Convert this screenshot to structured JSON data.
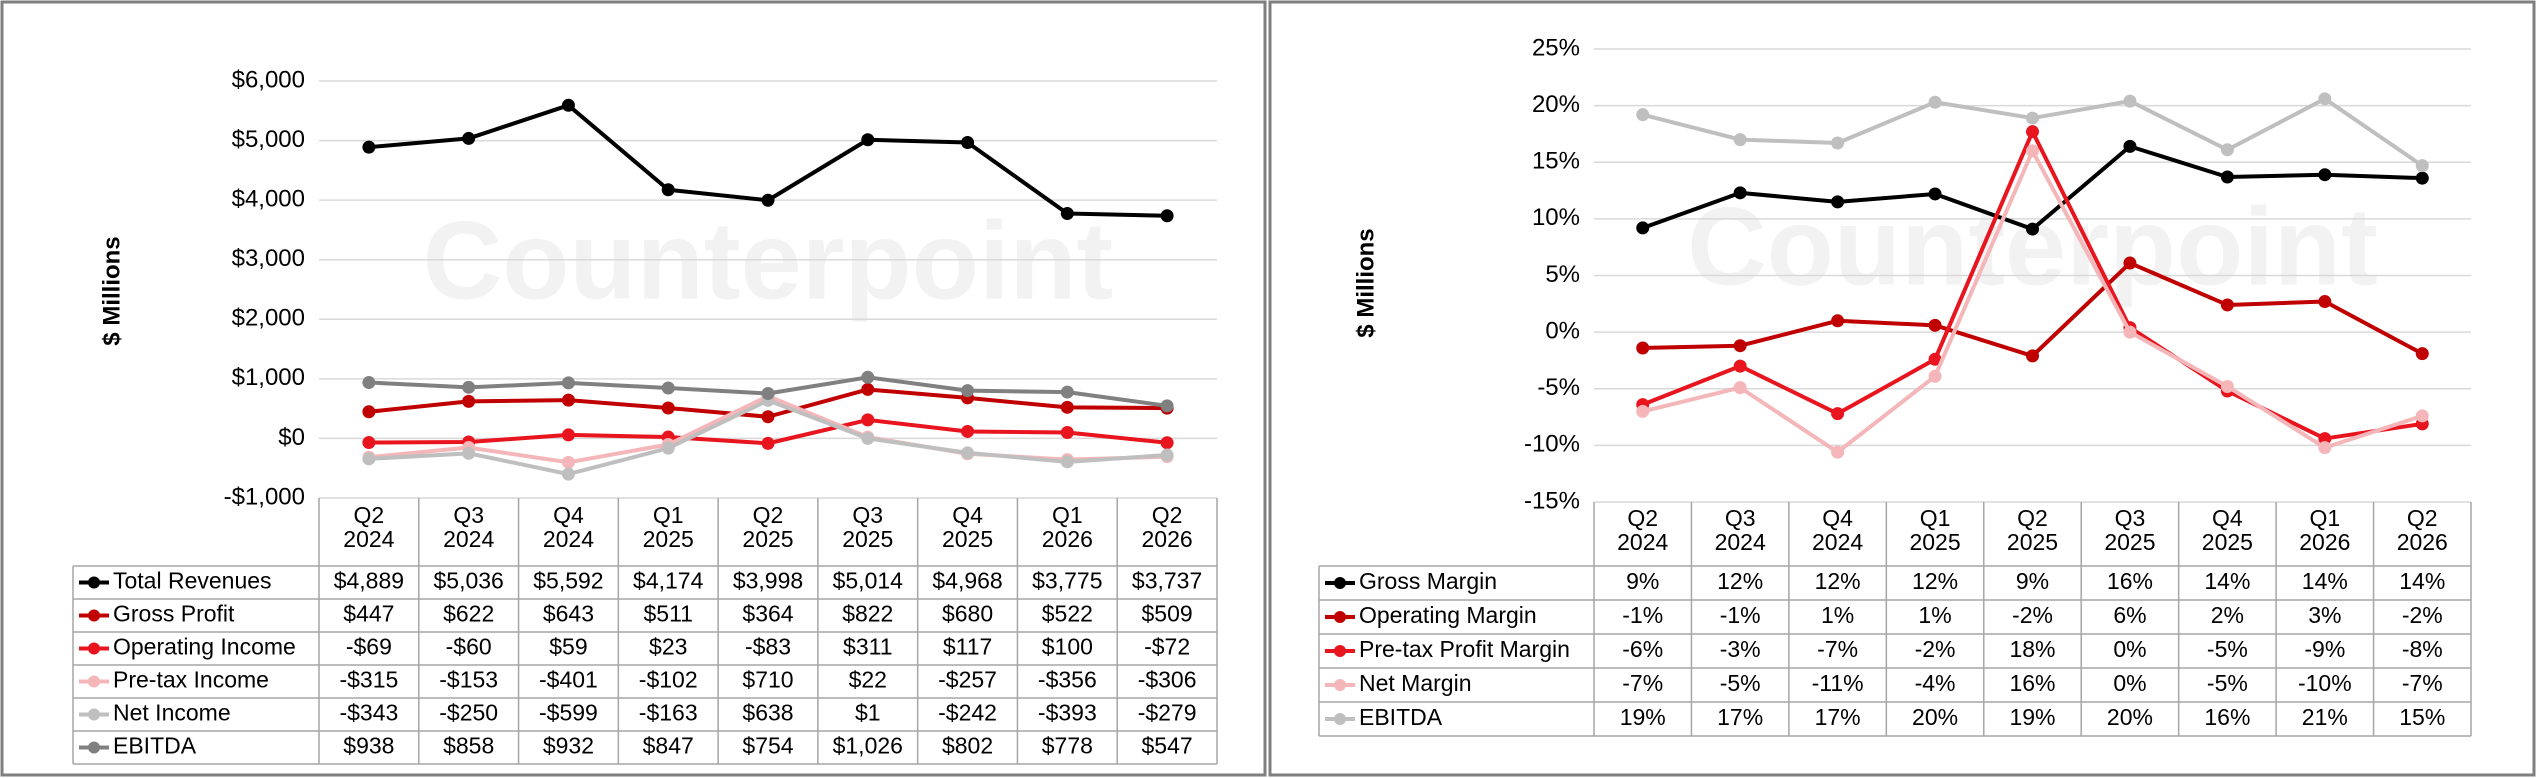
{
  "chart_data": [
    {
      "type": "line",
      "y_axis_label": "$ Millions",
      "watermark": "Counterpoint",
      "grid": true,
      "categories": [
        "Q2 2024",
        "Q3 2024",
        "Q4 2024",
        "Q1 2025",
        "Q2 2025",
        "Q3 2025",
        "Q4 2025",
        "Q1 2026",
        "Q2 2026"
      ],
      "ylim": [
        -1000,
        6000
      ],
      "yticks": [
        {
          "value": -1000,
          "label": "-$1,000"
        },
        {
          "value": 0,
          "label": "$0"
        },
        {
          "value": 1000,
          "label": "$1,000"
        },
        {
          "value": 2000,
          "label": "$2,000"
        },
        {
          "value": 3000,
          "label": "$3,000"
        },
        {
          "value": 4000,
          "label": "$4,000"
        },
        {
          "value": 5000,
          "label": "$5,000"
        },
        {
          "value": 6000,
          "label": "$6,000"
        }
      ],
      "series": [
        {
          "name": "Total Revenues",
          "color": "#000000",
          "values": [
            4889,
            5036,
            5592,
            4174,
            3998,
            5014,
            4968,
            3775,
            3737
          ],
          "value_labels": [
            "$4,889",
            "$5,036",
            "$5,592",
            "$4,174",
            "$3,998",
            "$5,014",
            "$4,968",
            "$3,775",
            "$3,737"
          ]
        },
        {
          "name": "Gross Profit",
          "color": "#c00000",
          "values": [
            447,
            622,
            643,
            511,
            364,
            822,
            680,
            522,
            509
          ],
          "value_labels": [
            "$447",
            "$622",
            "$643",
            "$511",
            "$364",
            "$822",
            "$680",
            "$522",
            "$509"
          ]
        },
        {
          "name": "Operating Income",
          "color": "#e8141e",
          "values": [
            -69,
            -60,
            59,
            23,
            -83,
            311,
            117,
            100,
            -72
          ],
          "value_labels": [
            "-$69",
            "-$60",
            "$59",
            "$23",
            "-$83",
            "$311",
            "$117",
            "$100",
            "-$72"
          ]
        },
        {
          "name": "Pre-tax Income",
          "color": "#f4b6b8",
          "values": [
            -315,
            -153,
            -401,
            -102,
            710,
            22,
            -257,
            -356,
            -306
          ],
          "value_labels": [
            "-$315",
            "-$153",
            "-$401",
            "-$102",
            "$710",
            "$22",
            "-$257",
            "-$356",
            "-$306"
          ]
        },
        {
          "name": "Net Income",
          "color": "#bfbfbf",
          "values": [
            -343,
            -250,
            -599,
            -163,
            638,
            1,
            -242,
            -393,
            -279
          ],
          "value_labels": [
            "-$343",
            "-$250",
            "-$599",
            "-$163",
            "$638",
            "$1",
            "-$242",
            "-$393",
            "-$279"
          ]
        },
        {
          "name": "EBITDA",
          "color": "#808080",
          "values": [
            938,
            858,
            932,
            847,
            754,
            1026,
            802,
            778,
            547
          ],
          "value_labels": [
            "$938",
            "$858",
            "$932",
            "$847",
            "$754",
            "$1,026",
            "$802",
            "$778",
            "$547"
          ]
        }
      ]
    },
    {
      "type": "line",
      "y_axis_label": "$ Millions",
      "watermark": "Counterpoint",
      "grid": true,
      "categories": [
        "Q2 2024",
        "Q3 2024",
        "Q4 2024",
        "Q1 2025",
        "Q2 2025",
        "Q3 2025",
        "Q4 2025",
        "Q1 2026",
        "Q2 2026"
      ],
      "ylim": [
        -15,
        25
      ],
      "yticks": [
        {
          "value": -15,
          "label": "-15%"
        },
        {
          "value": -10,
          "label": "-10%"
        },
        {
          "value": -5,
          "label": "-5%"
        },
        {
          "value": 0,
          "label": "0%"
        },
        {
          "value": 5,
          "label": "5%"
        },
        {
          "value": 10,
          "label": "10%"
        },
        {
          "value": 15,
          "label": "15%"
        },
        {
          "value": 20,
          "label": "20%"
        },
        {
          "value": 25,
          "label": "25%"
        }
      ],
      "series": [
        {
          "name": "Gross Margin",
          "color": "#000000",
          "values": [
            9.2,
            12.3,
            11.5,
            12.2,
            9.1,
            16.4,
            13.7,
            13.9,
            13.6
          ],
          "value_labels": [
            "9%",
            "12%",
            "12%",
            "12%",
            "9%",
            "16%",
            "14%",
            "14%",
            "14%"
          ]
        },
        {
          "name": "Operating Margin",
          "color": "#c00000",
          "values": [
            -1.4,
            -1.2,
            1.0,
            0.6,
            -2.1,
            6.1,
            2.4,
            2.7,
            -1.9
          ],
          "value_labels": [
            "-1%",
            "-1%",
            "1%",
            "1%",
            "-2%",
            "6%",
            "2%",
            "3%",
            "-2%"
          ]
        },
        {
          "name": "Pre-tax Profit Margin",
          "color": "#e8141e",
          "values": [
            -6.4,
            -3.0,
            -7.2,
            -2.4,
            17.7,
            0.4,
            -5.2,
            -9.4,
            -8.1
          ],
          "value_labels": [
            "-6%",
            "-3%",
            "-7%",
            "-2%",
            "18%",
            "0%",
            "-5%",
            "-9%",
            "-8%"
          ]
        },
        {
          "name": "Net Margin",
          "color": "#f4b6b8",
          "values": [
            -7.0,
            -4.9,
            -10.6,
            -3.9,
            16.0,
            0.0,
            -4.8,
            -10.2,
            -7.4
          ],
          "value_labels": [
            "-7%",
            "-5%",
            "-11%",
            "-4%",
            "16%",
            "0%",
            "-5%",
            "-10%",
            "-7%"
          ]
        },
        {
          "name": "EBITDA",
          "color": "#bfbfbf",
          "values": [
            19.2,
            17.0,
            16.7,
            20.3,
            18.9,
            20.4,
            16.1,
            20.6,
            14.7
          ],
          "value_labels": [
            "19%",
            "17%",
            "17%",
            "20%",
            "19%",
            "20%",
            "16%",
            "21%",
            "15%"
          ]
        }
      ]
    }
  ]
}
